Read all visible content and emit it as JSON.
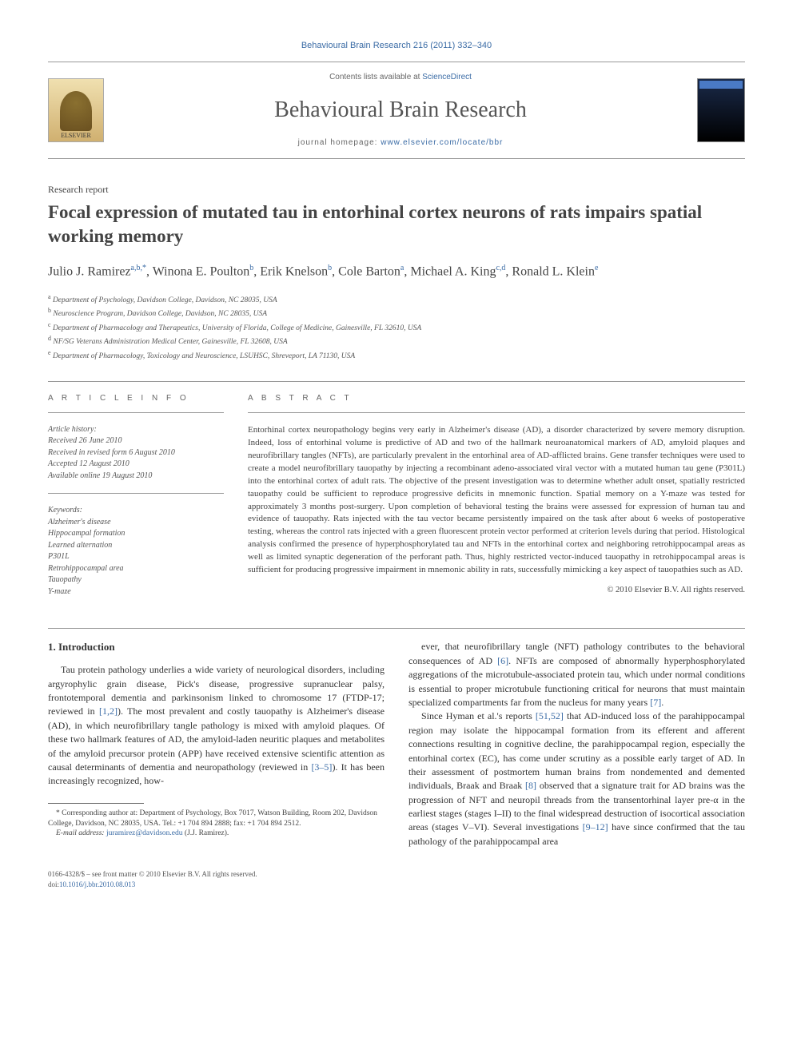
{
  "journal_ref": "Behavioural Brain Research 216 (2011) 332–340",
  "contents_text": "Contents lists available at ",
  "contents_link": "ScienceDirect",
  "journal_title": "Behavioural Brain Research",
  "homepage_text": "journal homepage: ",
  "homepage_link": "www.elsevier.com/locate/bbr",
  "elsevier_label": "ELSEVIER",
  "article_type": "Research report",
  "title": "Focal expression of mutated tau in entorhinal cortex neurons of rats impairs spatial working memory",
  "authors_html": "Julio J. Ramirez<sup>a,b,*</sup>, Winona E. Poulton<sup>b</sup>, Erik Knelson<sup>b</sup>, Cole Barton<sup>a</sup>, Michael A. King<sup>c,d</sup>, Ronald L. Klein<sup>e</sup>",
  "affiliations": [
    "a Department of Psychology, Davidson College, Davidson, NC 28035, USA",
    "b Neuroscience Program, Davidson College, Davidson, NC 28035, USA",
    "c Department of Pharmacology and Therapeutics, University of Florida, College of Medicine, Gainesville, FL 32610, USA",
    "d NF/SG Veterans Administration Medical Center, Gainesville, FL 32608, USA",
    "e Department of Pharmacology, Toxicology and Neuroscience, LSUHSC, Shreveport, LA 71130, USA"
  ],
  "article_info_label": "A R T I C L E   I N F O",
  "abstract_label": "A B S T R A C T",
  "history_label": "Article history:",
  "history": [
    "Received 26 June 2010",
    "Received in revised form 6 August 2010",
    "Accepted 12 August 2010",
    "Available online 19 August 2010"
  ],
  "keywords_label": "Keywords:",
  "keywords": [
    "Alzheimer's disease",
    "Hippocampal formation",
    "Learned alternation",
    "P301L",
    "Retrohippocampal area",
    "Tauopathy",
    "Y-maze"
  ],
  "abstract": "Entorhinal cortex neuropathology begins very early in Alzheimer's disease (AD), a disorder characterized by severe memory disruption. Indeed, loss of entorhinal volume is predictive of AD and two of the hallmark neuroanatomical markers of AD, amyloid plaques and neurofibrillary tangles (NFTs), are particularly prevalent in the entorhinal area of AD-afflicted brains. Gene transfer techniques were used to create a model neurofibrillary tauopathy by injecting a recombinant adeno-associated viral vector with a mutated human tau gene (P301L) into the entorhinal cortex of adult rats. The objective of the present investigation was to determine whether adult onset, spatially restricted tauopathy could be sufficient to reproduce progressive deficits in mnemonic function. Spatial memory on a Y-maze was tested for approximately 3 months post-surgery. Upon completion of behavioral testing the brains were assessed for expression of human tau and evidence of tauopathy. Rats injected with the tau vector became persistently impaired on the task after about 6 weeks of postoperative testing, whereas the control rats injected with a green fluorescent protein vector performed at criterion levels during that period. Histological analysis confirmed the presence of hyperphosphorylated tau and NFTs in the entorhinal cortex and neighboring retrohippocampal areas as well as limited synaptic degeneration of the perforant path. Thus, highly restricted vector-induced tauopathy in retrohippocampal areas is sufficient for producing progressive impairment in mnemonic ability in rats, successfully mimicking a key aspect of tauopathies such as AD.",
  "copyright": "© 2010 Elsevier B.V. All rights reserved.",
  "intro_heading": "1. Introduction",
  "intro_p1": "Tau protein pathology underlies a wide variety of neurological disorders, including argyrophylic grain disease, Pick's disease, progressive supranuclear palsy, frontotemporal dementia and parkinsonism linked to chromosome 17 (FTDP-17; reviewed in <a href='#'>[1,2]</a>). The most prevalent and costly tauopathy is Alzheimer's disease (AD), in which neurofibrillary tangle pathology is mixed with amyloid plaques. Of these two hallmark features of AD, the amyloid-laden neuritic plaques and metabolites of the amyloid precursor protein (APP) have received extensive scientific attention as causal determinants of dementia and neuropathology (reviewed in <a href='#'>[3–5]</a>). It has been increasingly recognized, how-",
  "intro_p2": "ever, that neurofibrillary tangle (NFT) pathology contributes to the behavioral consequences of AD <a href='#'>[6]</a>. NFTs are composed of abnormally hyperphosphorylated aggregations of the microtubule-associated protein tau, which under normal conditions is essential to proper microtubule functioning critical for neurons that must maintain specialized compartments far from the nucleus for many years <a href='#'>[7]</a>.",
  "intro_p3": "Since Hyman et al.'s reports <a href='#'>[51,52]</a> that AD-induced loss of the parahippocampal region may isolate the hippocampal formation from its efferent and afferent connections resulting in cognitive decline, the parahippocampal region, especially the entorhinal cortex (EC), has come under scrutiny as a possible early target of AD. In their assessment of postmortem human brains from nondemented and demented individuals, Braak and Braak <a href='#'>[8]</a> observed that a signature trait for AD brains was the progression of NFT and neuropil threads from the transentorhinal layer pre-α in the earliest stages (stages I–II) to the final widespread destruction of isocortical association areas (stages V–VI). Several investigations <a href='#'>[9–12]</a> have since confirmed that the tau pathology of the parahippocampal area",
  "corresponding": "* Corresponding author at: Department of Psychology, Box 7017, Watson Building, Room 202, Davidson College, Davidson, NC 28035, USA. Tel.: +1 704 894 2888; fax: +1 704 894 2512.",
  "email_label": "E-mail address: ",
  "email_link": "juramirez@davidson.edu",
  "email_suffix": " (J.J. Ramirez).",
  "footer_issn": "0166-4328/$ – see front matter © 2010 Elsevier B.V. All rights reserved.",
  "footer_doi_label": "doi:",
  "footer_doi": "10.1016/j.bbr.2010.08.013"
}
